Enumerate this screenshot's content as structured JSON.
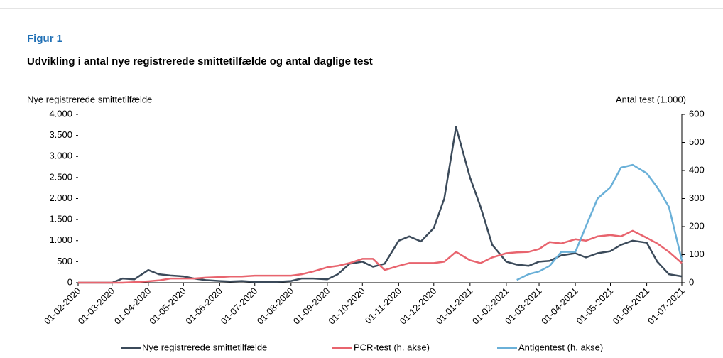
{
  "chart_data": {
    "type": "line",
    "figure_label": "Figur 1",
    "title": "Udvikling i antal nye registrerede smittetilfælde og antal daglige test",
    "ylabel": "Nye registrerede smittetilfælde",
    "y2label": "Antal test (1.000)",
    "x": [
      "01-02-2020",
      "10-02-2020",
      "20-02-2020",
      "01-03-2020",
      "10-03-2020",
      "20-03-2020",
      "01-04-2020",
      "10-04-2020",
      "20-04-2020",
      "01-05-2020",
      "10-05-2020",
      "20-05-2020",
      "01-06-2020",
      "10-06-2020",
      "20-06-2020",
      "01-07-2020",
      "10-07-2020",
      "20-07-2020",
      "01-08-2020",
      "10-08-2020",
      "20-08-2020",
      "01-09-2020",
      "10-09-2020",
      "20-09-2020",
      "01-10-2020",
      "10-10-2020",
      "20-10-2020",
      "01-11-2020",
      "10-11-2020",
      "20-11-2020",
      "01-12-2020",
      "10-12-2020",
      "20-12-2020",
      "01-01-2021",
      "10-01-2021",
      "20-01-2021",
      "01-02-2021",
      "10-02-2021",
      "20-02-2021",
      "01-03-2021",
      "10-03-2021",
      "20-03-2021",
      "01-04-2021",
      "10-04-2021",
      "20-04-2021",
      "01-05-2021",
      "10-05-2021",
      "20-05-2021",
      "01-06-2021",
      "10-06-2021",
      "20-06-2021",
      "01-07-2021"
    ],
    "series": [
      {
        "name": "Nye registrerede smittetilfælde",
        "color": "#3b4a5a",
        "values": [
          0,
          0,
          0,
          0,
          100,
          80,
          300,
          200,
          170,
          150,
          100,
          60,
          40,
          30,
          40,
          20,
          15,
          20,
          40,
          100,
          100,
          80,
          200,
          450,
          500,
          380,
          450,
          1000,
          1100,
          980,
          1300,
          2000,
          3700,
          2500,
          1800,
          900,
          500,
          430,
          400,
          500,
          520,
          650,
          700,
          600,
          700,
          750,
          900,
          1000,
          950,
          500,
          200,
          150
        ]
      },
      {
        "name": "PCR-test (h. akse)",
        "color": "#e8646e",
        "axis": "y2",
        "values": [
          0,
          0,
          0,
          0,
          0,
          2,
          5,
          8,
          15,
          15,
          15,
          18,
          20,
          22,
          22,
          25,
          25,
          25,
          25,
          30,
          40,
          55,
          60,
          70,
          85,
          85,
          45,
          60,
          70,
          70,
          70,
          75,
          110,
          80,
          70,
          90,
          105,
          108,
          110,
          120,
          145,
          140,
          155,
          150,
          165,
          170,
          165,
          185,
          160,
          140,
          110,
          70
        ]
      },
      {
        "name": "Antigentest (h. akse)",
        "color": "#6ab0d8",
        "axis": "y2",
        "values": [
          null,
          null,
          null,
          null,
          null,
          null,
          null,
          null,
          null,
          null,
          null,
          null,
          null,
          null,
          null,
          null,
          null,
          null,
          null,
          null,
          null,
          null,
          null,
          null,
          null,
          null,
          null,
          null,
          null,
          null,
          null,
          null,
          null,
          null,
          null,
          null,
          null,
          10,
          30,
          40,
          60,
          110,
          110,
          200,
          300,
          340,
          410,
          420,
          390,
          340,
          270,
          80
        ]
      }
    ],
    "xlim": [
      "01-02-2020",
      "01-07-2021"
    ],
    "xticks": [
      "01-02-2020",
      "01-03-2020",
      "01-04-2020",
      "01-05-2020",
      "01-06-2020",
      "01-07-2020",
      "01-08-2020",
      "01-09-2020",
      "01-10-2020",
      "01-11-2020",
      "01-12-2020",
      "01-01-2021",
      "01-02-2021",
      "01-03-2021",
      "01-04-2021",
      "01-05-2021",
      "01-06-2021",
      "01-07-2021"
    ],
    "ylim": [
      0,
      4000
    ],
    "yticks": [
      0,
      500,
      {
        "value": 1000,
        "label": "1.000"
      },
      {
        "value": 1500,
        "label": "1.500"
      },
      {
        "value": 2000,
        "label": "2.000"
      },
      {
        "value": 2500,
        "label": "2.500"
      },
      {
        "value": 3000,
        "label": "3.000"
      },
      {
        "value": 3500,
        "label": "3.500"
      },
      {
        "value": 4000,
        "label": "4.000"
      }
    ],
    "y2lim": [
      0,
      600
    ],
    "y2ticks": [
      0,
      100,
      200,
      300,
      400,
      500,
      600
    ],
    "legend": "bottom"
  }
}
